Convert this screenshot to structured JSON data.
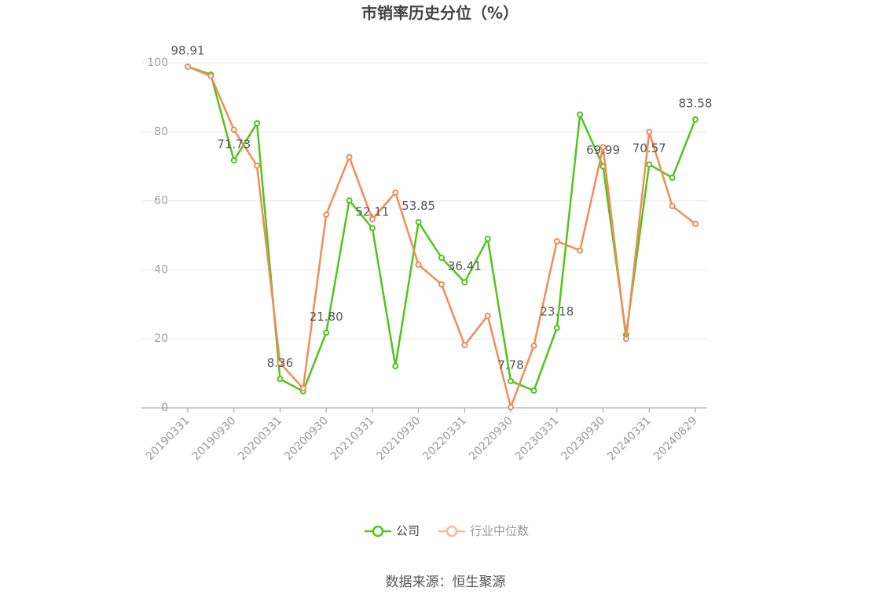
{
  "chart_data": {
    "type": "line",
    "title": "市销率历史分位（%）",
    "categories": [
      "20190331",
      null,
      "20190930",
      null,
      "20200331",
      null,
      "20200930",
      null,
      "20210331",
      null,
      "20210930",
      null,
      "20220331",
      null,
      "20220930",
      null,
      "20230331",
      null,
      "20230930",
      null,
      "20240331",
      null,
      "20240829"
    ],
    "series": [
      {
        "name": "公司",
        "color": "#52c41a",
        "values": [
          98.91,
          96.6,
          71.73,
          82.5,
          8.36,
          4.8,
          21.8,
          60.1,
          52.11,
          12.1,
          53.85,
          43.5,
          36.41,
          49.0,
          7.78,
          5.0,
          23.18,
          85.0,
          69.99,
          21.2,
          70.57,
          66.7,
          83.58
        ],
        "value_labels": [
          "98.91",
          null,
          "71.73",
          null,
          "8.36",
          null,
          "21.80",
          null,
          "52.11",
          null,
          "53.85",
          null,
          "36.41",
          null,
          "7.78",
          null,
          "23.18",
          null,
          "69.99",
          null,
          "70.57",
          null,
          "83.58"
        ]
      },
      {
        "name": "行业中位数",
        "color": "#f08c5a",
        "values": [
          98.9,
          96.2,
          80.6,
          70.2,
          13.0,
          5.7,
          56.0,
          72.7,
          54.7,
          62.4,
          41.5,
          35.8,
          18.2,
          26.7,
          0.2,
          18.0,
          48.3,
          45.6,
          75.6,
          20.0,
          80.0,
          58.5,
          53.3
        ]
      }
    ],
    "ylim": [
      0,
      100
    ],
    "yticks": [
      0,
      20,
      40,
      60,
      80,
      100
    ],
    "grid": true,
    "source": "数据来源：恒生聚源"
  }
}
